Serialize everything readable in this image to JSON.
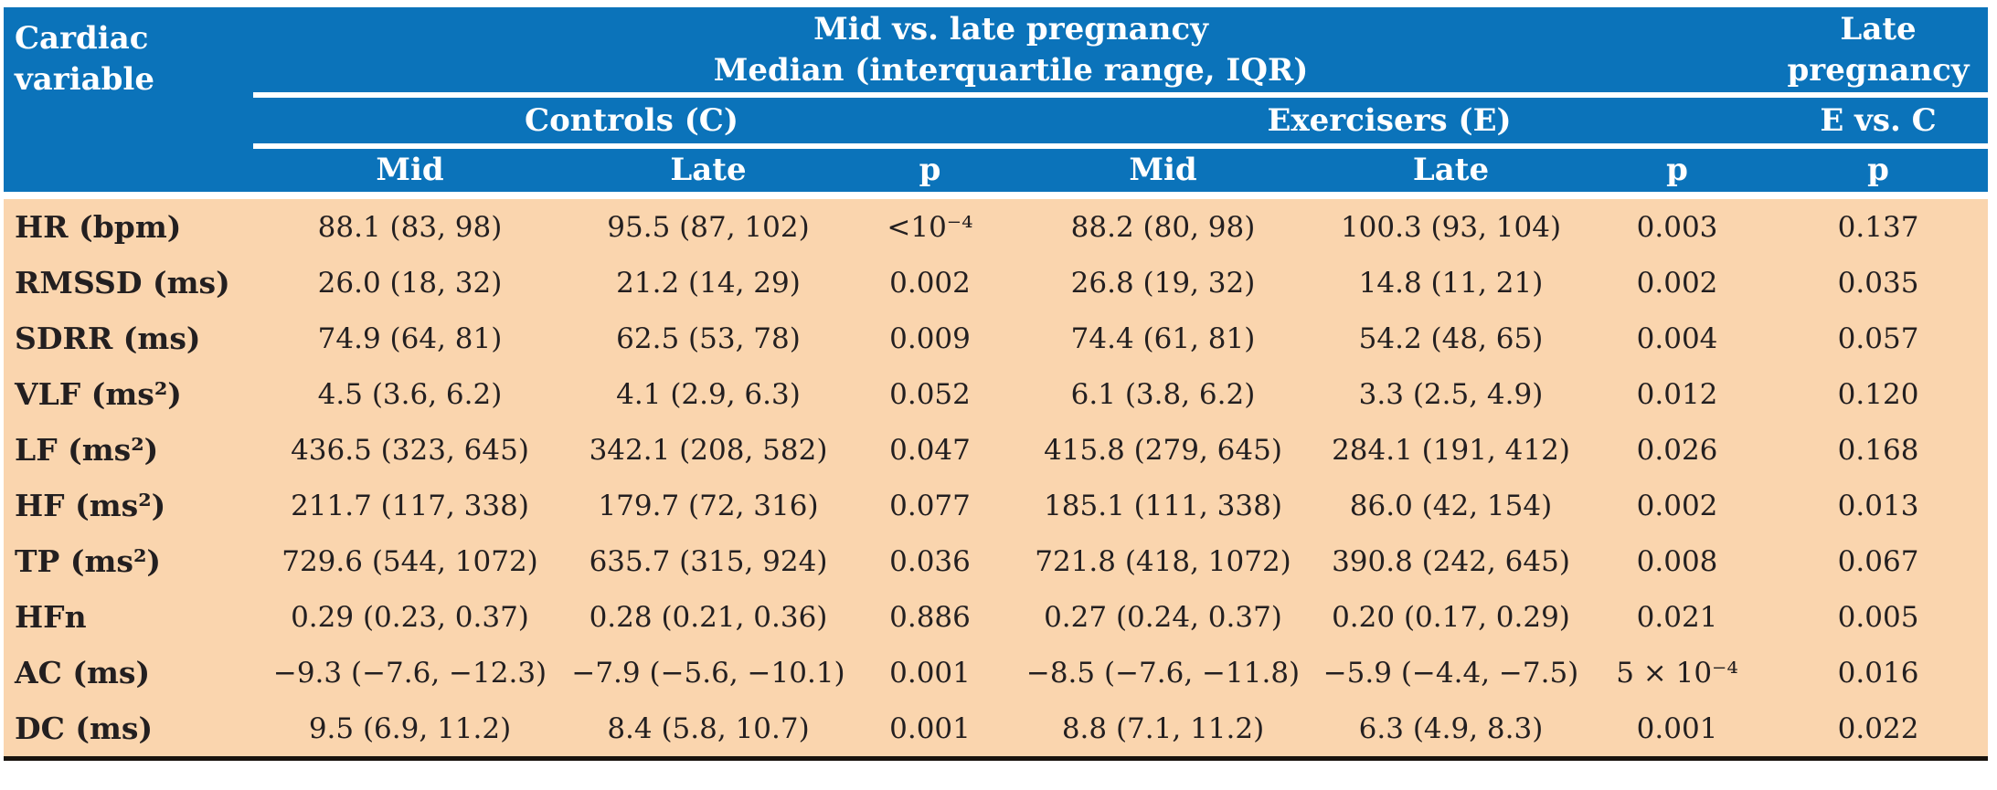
{
  "colors": {
    "header_bg": "#0B73BA",
    "header_text": "#FFFFFF",
    "body_bg": "#FAD5AE",
    "body_text": "#231F20",
    "bottom_border": "#18120D",
    "rule_color": "#FFFFFF"
  },
  "table": {
    "corner": {
      "line1": "Cardiac",
      "line2": "variable"
    },
    "span_header": {
      "line1": "Mid vs. late pregnancy",
      "line2": "Median (interquartile range, IQR)"
    },
    "late_pregnancy": {
      "line1": "Late",
      "line2": "pregnancy"
    },
    "groups": {
      "controls": "Controls (C)",
      "exercisers": "Exercisers (E)",
      "evsc": "E vs. C"
    },
    "subcols": [
      "Mid",
      "Late",
      "p",
      "Mid",
      "Late",
      "p",
      "p"
    ],
    "rows": [
      {
        "label": "HR (bpm)",
        "cells": [
          "88.1 (83, 98)",
          "95.5 (87, 102)",
          "<10⁻⁴",
          "88.2 (80, 98)",
          "100.3 (93, 104)",
          "0.003",
          "0.137"
        ]
      },
      {
        "label": "RMSSD (ms)",
        "cells": [
          "26.0 (18, 32)",
          "21.2 (14, 29)",
          "0.002",
          "26.8 (19, 32)",
          "14.8 (11, 21)",
          "0.002",
          "0.035"
        ]
      },
      {
        "label": "SDRR (ms)",
        "cells": [
          "74.9 (64, 81)",
          "62.5 (53, 78)",
          "0.009",
          "74.4 (61, 81)",
          "54.2 (48, 65)",
          "0.004",
          "0.057"
        ]
      },
      {
        "label": "VLF (ms²)",
        "cells": [
          "4.5 (3.6, 6.2)",
          "4.1 (2.9, 6.3)",
          "0.052",
          "6.1 (3.8, 6.2)",
          "3.3 (2.5, 4.9)",
          "0.012",
          "0.120"
        ]
      },
      {
        "label": "LF (ms²)",
        "cells": [
          "436.5 (323, 645)",
          "342.1 (208, 582)",
          "0.047",
          "415.8 (279, 645)",
          "284.1 (191, 412)",
          "0.026",
          "0.168"
        ]
      },
      {
        "label": "HF (ms²)",
        "cells": [
          "211.7 (117, 338)",
          "179.7 (72, 316)",
          "0.077",
          "185.1 (111, 338)",
          "86.0 (42, 154)",
          "0.002",
          "0.013"
        ]
      },
      {
        "label": "TP (ms²)",
        "cells": [
          "729.6 (544, 1072)",
          "635.7 (315, 924)",
          "0.036",
          "721.8 (418, 1072)",
          "390.8 (242, 645)",
          "0.008",
          "0.067"
        ]
      },
      {
        "label": "HFn",
        "cells": [
          "0.29 (0.23, 0.37)",
          "0.28 (0.21, 0.36)",
          "0.886",
          "0.27 (0.24, 0.37)",
          "0.20 (0.17, 0.29)",
          "0.021",
          "0.005"
        ]
      },
      {
        "label": "AC (ms)",
        "cells": [
          "−9.3 (−7.6, −12.3)",
          "−7.9 (−5.6, −10.1)",
          "0.001",
          "−8.5 (−7.6, −11.8)",
          "−5.9 (−4.4, −7.5)",
          "5 × 10⁻⁴",
          "0.016"
        ]
      },
      {
        "label": "DC (ms)",
        "cells": [
          "9.5 (6.9, 11.2)",
          "8.4 (5.8, 10.7)",
          "0.001",
          "8.8 (7.1, 11.2)",
          "6.3 (4.9, 8.3)",
          "0.001",
          "0.022"
        ]
      }
    ]
  }
}
